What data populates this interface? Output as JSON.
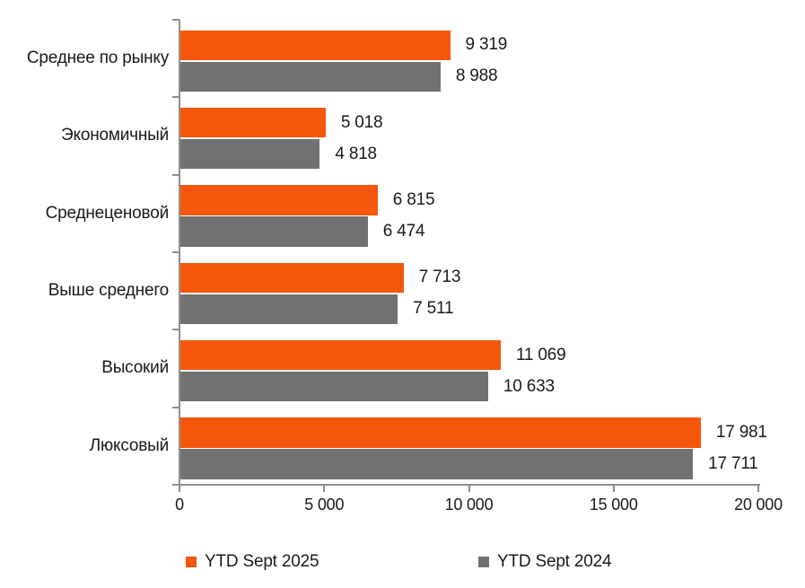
{
  "chart_data": {
    "type": "bar",
    "orientation": "horizontal",
    "title": "",
    "categories": [
      "Среднее по рынку",
      "Экономичный",
      "Среднеценовой",
      "Выше среднего",
      "Высокий",
      "Люксовый"
    ],
    "series": [
      {
        "name": "YTD Sept 2025",
        "color": "#F6570D",
        "values": [
          9319,
          5018,
          6815,
          7713,
          11069,
          17981
        ],
        "value_labels": [
          "9 319",
          "5 018",
          "6 815",
          "7 713",
          "11 069",
          "17 981"
        ]
      },
      {
        "name": "YTD Sept 2024",
        "color": "#717171",
        "values": [
          8988,
          4818,
          6474,
          7511,
          10633,
          17711
        ],
        "value_labels": [
          "8 988",
          "4 818",
          "6 474",
          "7 511",
          "10 633",
          "17 711"
        ]
      }
    ],
    "xlim": [
      0,
      20000
    ],
    "x_ticks": [
      0,
      5000,
      10000,
      15000,
      20000
    ],
    "x_tick_labels": [
      "0",
      "5 000",
      "10 000",
      "15 000",
      "20 000"
    ],
    "grid": false,
    "legend_position": "bottom",
    "axis_color": "#8F8F8F",
    "text_color": "#1A1A1A",
    "background": "#FFFFFF"
  }
}
